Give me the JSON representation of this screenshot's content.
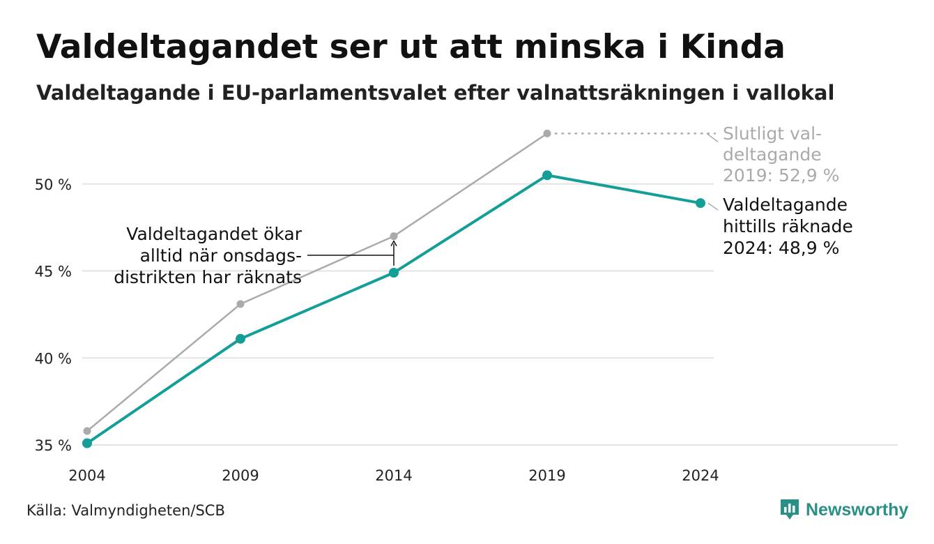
{
  "title": "Valdeltagandet ser ut att minska i Kinda",
  "subtitle": "Valdeltagande i EU-parlamentsvalet efter valnattsräkningen i vallokal",
  "source": "Källa: Valmyndigheten/SCB",
  "brand": "Newsworthy",
  "colors": {
    "current": "#139e97",
    "final": "#aaaaaa",
    "grid": "#e3e3e3",
    "brand": "#2a8f86"
  },
  "chart_data": {
    "type": "line",
    "x": [
      "2004",
      "2009",
      "2014",
      "2019",
      "2024"
    ],
    "series": [
      {
        "key": "final",
        "values": [
          35.8,
          43.1,
          47.0,
          52.9,
          null
        ]
      },
      {
        "key": "current",
        "values": [
          35.1,
          41.1,
          44.9,
          50.5,
          48.9
        ]
      }
    ],
    "ylim": [
      35,
      54
    ],
    "yticks": [
      35,
      40,
      45,
      50
    ],
    "ytick_labels": [
      "35 %",
      "40 %",
      "45 %",
      "50 %"
    ],
    "grid": true,
    "annotations": {
      "final_label": [
        "Slutligt val-",
        "deltagande",
        "2019: 52,9 %"
      ],
      "current_label": [
        "Valdeltagande",
        "hittills räknade",
        "2024: 48,9 %"
      ],
      "note": [
        "Valdeltagandet ökar",
        "alltid när onsdags-",
        "distrikten har räknats"
      ]
    }
  }
}
